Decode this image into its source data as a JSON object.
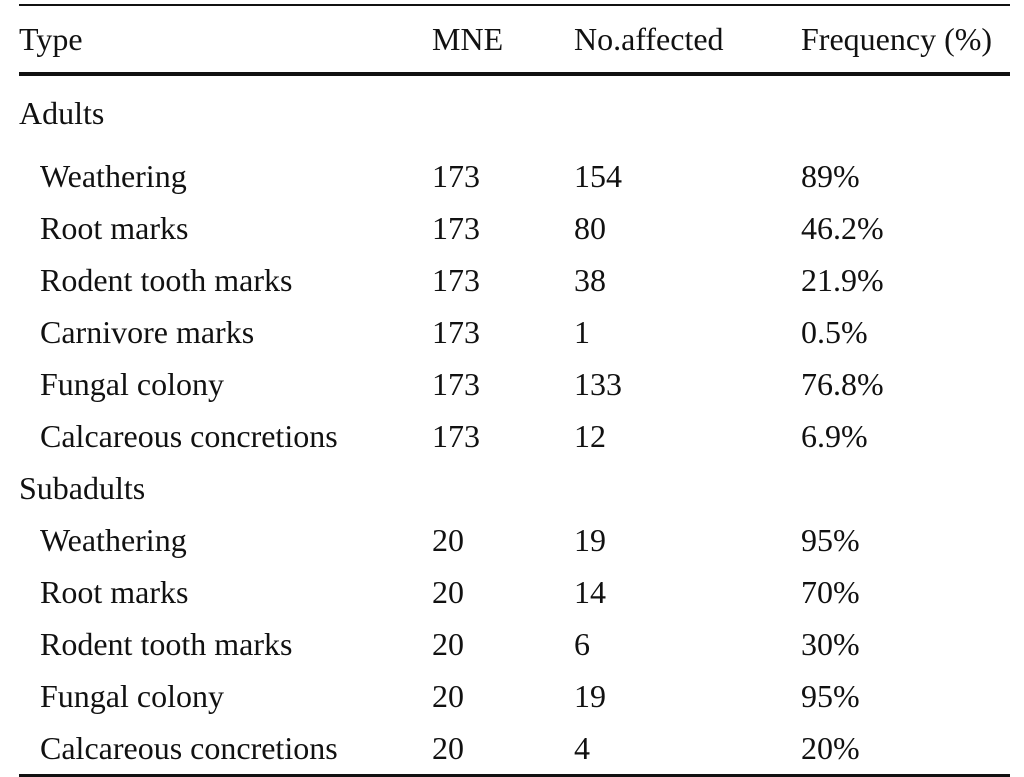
{
  "table": {
    "headers": {
      "type": "Type",
      "mne": "MNE",
      "affected": "No.affected",
      "frequency": "Frequency (%)"
    },
    "groups": [
      {
        "label": "Adults",
        "rows": [
          {
            "type": "Weathering",
            "mne": "173",
            "affected": "154",
            "frequency": "89%"
          },
          {
            "type": "Root marks",
            "mne": "173",
            "affected": "80",
            "frequency": "46.2%"
          },
          {
            "type": "Rodent tooth marks",
            "mne": "173",
            "affected": "38",
            "frequency": "21.9%"
          },
          {
            "type": "Carnivore marks",
            "mne": "173",
            "affected": "1",
            "frequency": "0.5%"
          },
          {
            "type": "Fungal colony",
            "mne": "173",
            "affected": "133",
            "frequency": "76.8%"
          },
          {
            "type": "Calcareous concretions",
            "mne": "173",
            "affected": "12",
            "frequency": "6.9%"
          }
        ]
      },
      {
        "label": "Subadults",
        "rows": [
          {
            "type": "Weathering",
            "mne": "20",
            "affected": "19",
            "frequency": "95%"
          },
          {
            "type": "Root marks",
            "mne": "20",
            "affected": "14",
            "frequency": "70%"
          },
          {
            "type": "Rodent tooth marks",
            "mne": "20",
            "affected": "6",
            "frequency": "30%"
          },
          {
            "type": "Fungal colony",
            "mne": "20",
            "affected": "19",
            "frequency": "95%"
          },
          {
            "type": "Calcareous concretions",
            "mne": "20",
            "affected": "4",
            "frequency": "20%"
          }
        ]
      }
    ]
  }
}
